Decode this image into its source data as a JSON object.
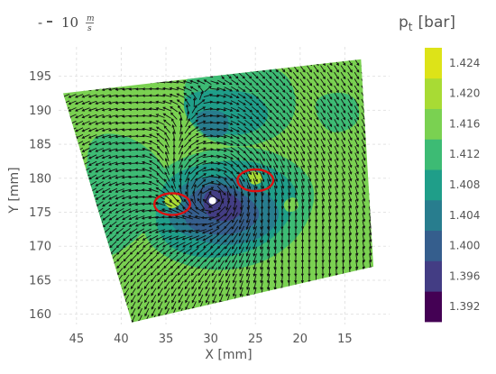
{
  "chart_data": {
    "type": "heatmap",
    "title": "",
    "xlabel": "X [mm]",
    "ylabel": "Y [mm]",
    "xlim": [
      47,
      10
    ],
    "ylim": [
      158.5,
      198
    ],
    "x_reversed": true,
    "x_ticks": [
      45,
      40,
      35,
      30,
      25,
      20,
      15
    ],
    "y_ticks": [
      160,
      165,
      170,
      175,
      180,
      185,
      190,
      195
    ],
    "grid": true,
    "colorbar": {
      "title": "p",
      "title_subscript": "t",
      "unit": "[bar]",
      "levels": [
        1.392,
        1.396,
        1.4,
        1.404,
        1.408,
        1.412,
        1.416,
        1.42,
        1.424
      ],
      "tick_labels": [
        "1.392",
        "1.396",
        "1.400",
        "1.404",
        "1.408",
        "1.412",
        "1.416",
        "1.420",
        "1.424"
      ],
      "colors": [
        "#440154",
        "#433d84",
        "#355e8d",
        "#287d8e",
        "#1f9e89",
        "#3dbb74",
        "#7ad151",
        "#a8db34",
        "#dde318"
      ]
    },
    "reference_vector": {
      "prefix": "-",
      "value": "10",
      "unit_num": "m",
      "unit_den": "s"
    },
    "domain_corners_mm": [
      [
        46.5,
        192.5
      ],
      [
        13.2,
        197.5
      ],
      [
        11.8,
        167.0
      ],
      [
        38.8,
        158.8
      ]
    ],
    "vortex_center_mm": [
      29.8,
      176.7
    ],
    "highlighted_regions": [
      {
        "shape": "ellipse",
        "cx": 34.3,
        "cy": 176.2,
        "rx": 2.0,
        "ry": 2.0,
        "color": "#dd1111"
      },
      {
        "shape": "ellipse",
        "cx": 25.0,
        "cy": 179.7,
        "rx": 2.0,
        "ry": 2.0,
        "color": "#dd1111"
      }
    ],
    "contour_regions": [
      {
        "level": "1.412-1.416",
        "polygon": [
          [
            43.5,
            187
          ],
          [
            38,
            186
          ],
          [
            34,
            180
          ],
          [
            36,
            174
          ],
          [
            40,
            169
          ],
          [
            43,
            168
          ],
          [
            44.5,
            172
          ],
          [
            44,
            180
          ]
        ]
      },
      {
        "level": "1.412-1.416",
        "polygon": [
          [
            33,
            197
          ],
          [
            22,
            197
          ],
          [
            20,
            191
          ],
          [
            22,
            186
          ],
          [
            28,
            184
          ],
          [
            33,
            188
          ]
        ]
      },
      {
        "level": "1.412-1.416",
        "polygon": [
          [
            19,
            192
          ],
          [
            14,
            193
          ],
          [
            13,
            188
          ],
          [
            17,
            186
          ]
        ]
      },
      {
        "level": "1.412-1.416",
        "polygon": [
          [
            37,
            180
          ],
          [
            32,
            184
          ],
          [
            24,
            185
          ],
          [
            18,
            180
          ],
          [
            19,
            173
          ],
          [
            23,
            168
          ],
          [
            29,
            166
          ],
          [
            35,
            168
          ],
          [
            38,
            172
          ]
        ]
      },
      {
        "level": "1.408-1.412",
        "polygon": [
          [
            33,
            193
          ],
          [
            25,
            193
          ],
          [
            23,
            189
          ],
          [
            26,
            186
          ],
          [
            31,
            187
          ],
          [
            33,
            189
          ]
        ]
      },
      {
        "level": "1.408-1.412",
        "polygon": [
          [
            35.5,
            179.5
          ],
          [
            32,
            182
          ],
          [
            25,
            183
          ],
          [
            20,
            179
          ],
          [
            21,
            174
          ],
          [
            24,
            170
          ],
          [
            29,
            168
          ],
          [
            34,
            169
          ],
          [
            36.5,
            173
          ]
        ]
      },
      {
        "level": "1.404-1.408",
        "polygon": [
          [
            32,
            190
          ],
          [
            28,
            190
          ],
          [
            28,
            186
          ],
          [
            31,
            186
          ]
        ]
      },
      {
        "level": "1.404-1.408",
        "polygon": [
          [
            34.5,
            178
          ],
          [
            31,
            180.5
          ],
          [
            26,
            180
          ],
          [
            22,
            176
          ],
          [
            23,
            172
          ],
          [
            27,
            170
          ],
          [
            31,
            170.5
          ],
          [
            35,
            173
          ]
        ]
      },
      {
        "level": "1.400-1.404",
        "polygon": [
          [
            33,
            177
          ],
          [
            30,
            179.5
          ],
          [
            27,
            178.5
          ],
          [
            24,
            175
          ],
          [
            26,
            172
          ],
          [
            30,
            171.5
          ],
          [
            33,
            173
          ]
        ]
      },
      {
        "level": "1.396-1.400",
        "polygon": [
          [
            31,
            178
          ],
          [
            28.5,
            178.5
          ],
          [
            26,
            176
          ],
          [
            27.5,
            173.5
          ],
          [
            30.5,
            174
          ]
        ]
      },
      {
        "level": "1.420-1.424",
        "polygon": [
          [
            35.5,
            177
          ],
          [
            34,
            178
          ],
          [
            33,
            176.5
          ],
          [
            34.5,
            175.2
          ]
        ]
      },
      {
        "level": "1.420-1.424",
        "polygon": [
          [
            26,
            181
          ],
          [
            24.5,
            181
          ],
          [
            24,
            179.5
          ],
          [
            25.5,
            178.8
          ]
        ]
      },
      {
        "level": "1.416-1.420",
        "polygon": [
          [
            22,
            176.5
          ],
          [
            20.5,
            177.5
          ],
          [
            20,
            175.5
          ],
          [
            21.5,
            174.8
          ]
        ]
      }
    ]
  }
}
